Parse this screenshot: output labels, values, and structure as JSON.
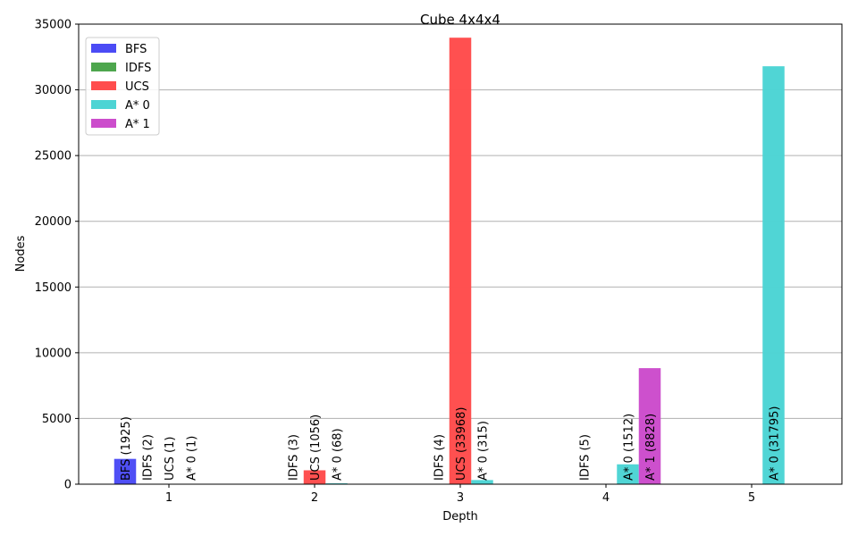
{
  "chart_data": {
    "type": "bar",
    "title": "Cube 4x4x4",
    "xlabel": "Depth",
    "ylabel": "Nodes",
    "categories": [
      "1",
      "2",
      "3",
      "4",
      "5"
    ],
    "ylim": [
      0,
      35000
    ],
    "yticks": [
      0,
      5000,
      10000,
      15000,
      20000,
      25000,
      30000,
      35000
    ],
    "grid": "y",
    "legend_position": "top-left",
    "series": [
      {
        "name": "BFS",
        "color": "#4b4bf5",
        "values": [
          1925,
          null,
          null,
          null,
          null
        ]
      },
      {
        "name": "IDFS",
        "color": "#4da64d",
        "values": [
          2,
          3,
          4,
          5,
          null
        ]
      },
      {
        "name": "UCS",
        "color": "#ff4d4d",
        "values": [
          1,
          1056,
          33968,
          null,
          null
        ]
      },
      {
        "name": "A* 0",
        "color": "#4dd4d4",
        "values": [
          1,
          68,
          315,
          1512,
          31795
        ]
      },
      {
        "name": "A* 1",
        "color": "#cc4dcc",
        "values": [
          null,
          null,
          null,
          8828,
          null
        ]
      }
    ],
    "bar_labels": [
      {
        "series": 0,
        "cat": 0,
        "text": "BFS (1925)"
      },
      {
        "series": 1,
        "cat": 0,
        "text": "IDFS (2)"
      },
      {
        "series": 2,
        "cat": 0,
        "text": "UCS (1)"
      },
      {
        "series": 3,
        "cat": 0,
        "text": "A* 0 (1)"
      },
      {
        "series": 1,
        "cat": 1,
        "text": "IDFS (3)"
      },
      {
        "series": 2,
        "cat": 1,
        "text": "UCS (1056)"
      },
      {
        "series": 3,
        "cat": 1,
        "text": "A* 0 (68)"
      },
      {
        "series": 1,
        "cat": 2,
        "text": "IDFS (4)"
      },
      {
        "series": 2,
        "cat": 2,
        "text": "UCS (33968)"
      },
      {
        "series": 3,
        "cat": 2,
        "text": "A* 0 (315)"
      },
      {
        "series": 1,
        "cat": 3,
        "text": "IDFS (5)"
      },
      {
        "series": 3,
        "cat": 3,
        "text": "A* 0 (1512)"
      },
      {
        "series": 4,
        "cat": 3,
        "text": "A* 1 (8828)"
      },
      {
        "series": 3,
        "cat": 4,
        "text": "A* 0 (31795)"
      }
    ]
  }
}
